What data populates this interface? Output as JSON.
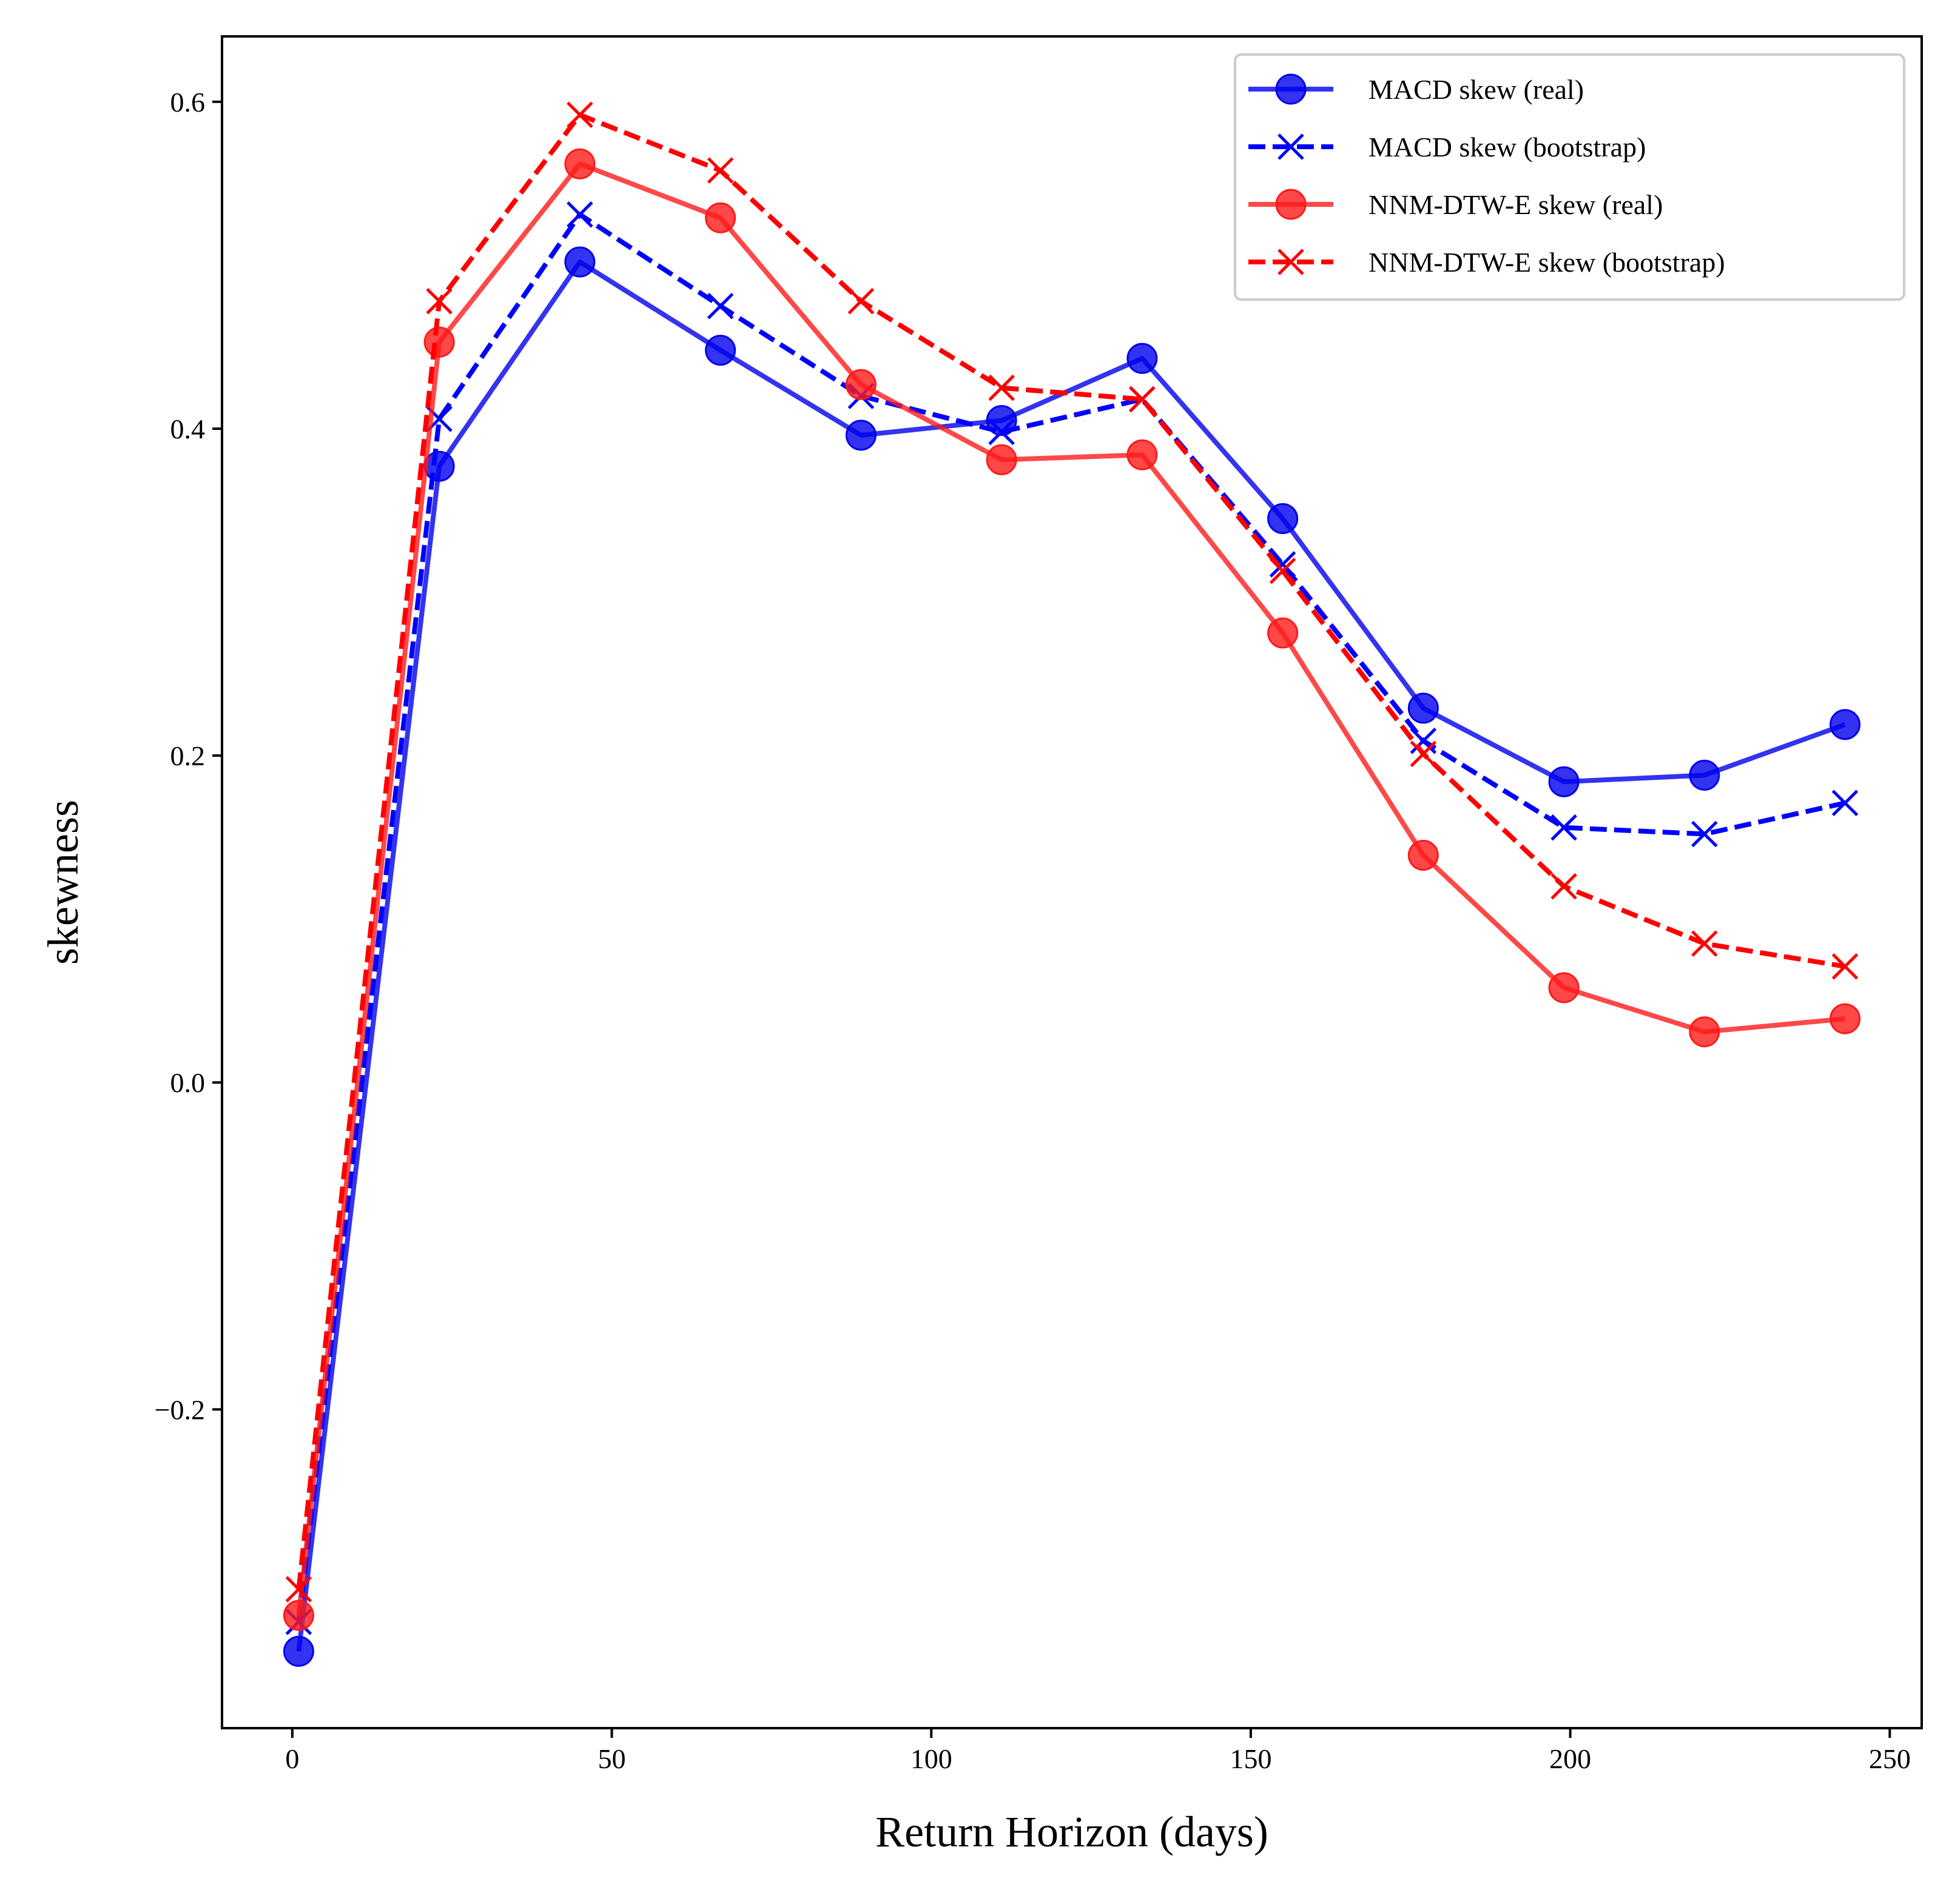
{
  "chart_data": {
    "type": "line",
    "xlabel": "Return Horizon (days)",
    "ylabel": "skewness",
    "xlim": [
      -11,
      255
    ],
    "ylim": [
      -0.395,
      0.64
    ],
    "xticks": [
      0,
      50,
      100,
      150,
      200,
      250
    ],
    "yticks": [
      -0.2,
      0.0,
      0.2,
      0.4,
      0.6
    ],
    "xtick_labels": [
      "0",
      "50",
      "100",
      "150",
      "200",
      "250"
    ],
    "ytick_labels": [
      "−0.2",
      "0.0",
      "0.2",
      "0.4",
      "0.6"
    ],
    "grid": false,
    "legend_position": "top-right",
    "x": [
      1,
      23,
      45,
      67,
      89,
      111,
      133,
      155,
      177,
      199,
      221,
      243
    ],
    "series": [
      {
        "name": "MACD skew (real)",
        "color": "#0000ee",
        "line_style": "solid",
        "marker": "circle",
        "values": [
          -0.348,
          0.377,
          0.502,
          0.448,
          0.396,
          0.405,
          0.443,
          0.345,
          0.229,
          0.184,
          0.188,
          0.219
        ]
      },
      {
        "name": "MACD skew (bootstrap)",
        "color": "#0000ff",
        "line_style": "dashed",
        "marker": "x",
        "values": [
          -0.33,
          0.406,
          0.531,
          0.475,
          0.42,
          0.398,
          0.418,
          0.317,
          0.209,
          0.156,
          0.152,
          0.171
        ]
      },
      {
        "name": "NNM-DTW-E skew (real)",
        "color": "#ff1a1a",
        "line_style": "solid",
        "marker": "circle",
        "values": [
          -0.326,
          0.453,
          0.562,
          0.529,
          0.427,
          0.381,
          0.384,
          0.275,
          0.139,
          0.058,
          0.031,
          0.039
        ]
      },
      {
        "name": "NNM-DTW-E skew (bootstrap)",
        "color": "#ff0000",
        "line_style": "dashed",
        "marker": "x",
        "values": [
          -0.31,
          0.478,
          0.592,
          0.558,
          0.478,
          0.425,
          0.418,
          0.313,
          0.201,
          0.12,
          0.085,
          0.071
        ]
      }
    ]
  }
}
